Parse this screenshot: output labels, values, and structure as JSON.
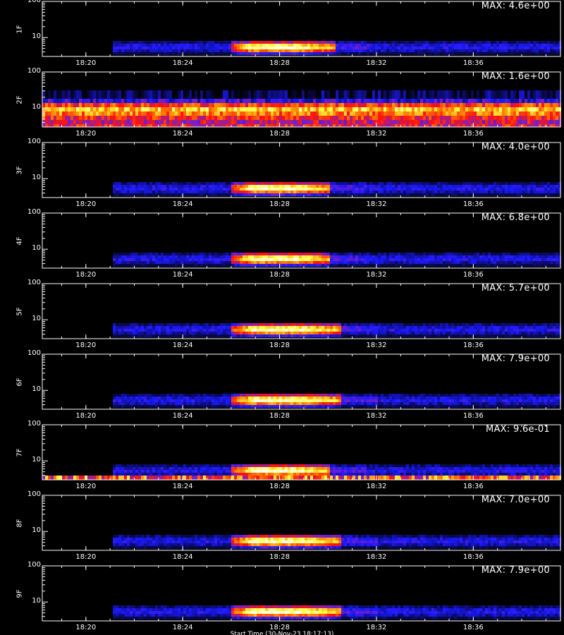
{
  "chart_data": {
    "type": "heatmap",
    "x_tick_labels": [
      "18:20",
      "18:24",
      "18:28",
      "18:32",
      "18:36"
    ],
    "y_tick_labels": [
      "100",
      "10"
    ],
    "x_time_ticks_minutes": [
      20,
      24,
      28,
      32,
      36
    ],
    "x_range_minutes": [
      18.2,
      39.6
    ],
    "y_scale": "log",
    "y_range": [
      3,
      100
    ],
    "colormap": [
      "#000000",
      "#0a0a60",
      "#1a1aff",
      "#8020c0",
      "#ff1010",
      "#ff8000",
      "#ffff40",
      "#ffffff"
    ],
    "bottom_label": "Start Time (30-Nov-23 18:17:13)",
    "panels": [
      {
        "name": "1F",
        "max_label": "MAX: 4.6e+00",
        "burst_start": 26.0,
        "burst_peak": 27.2,
        "burst_end": 30.2,
        "noise_start": 21.1
      },
      {
        "name": "2F",
        "max_label": "MAX: 1.6e+00",
        "burst_start": 18.2,
        "burst_peak": 28.0,
        "burst_end": 39.6,
        "noise_start": 18.2,
        "saturated": true
      },
      {
        "name": "3F",
        "max_label": "MAX: 4.0e+00",
        "burst_start": 26.0,
        "burst_peak": 27.2,
        "burst_end": 30.0,
        "noise_start": 21.1
      },
      {
        "name": "4F",
        "max_label": "MAX: 6.8e+00",
        "burst_start": 26.0,
        "burst_peak": 27.2,
        "burst_end": 30.0,
        "noise_start": 21.1
      },
      {
        "name": "5F",
        "max_label": "MAX: 5.7e+00",
        "burst_start": 26.0,
        "burst_peak": 27.3,
        "burst_end": 30.5,
        "noise_start": 21.1
      },
      {
        "name": "6F",
        "max_label": "MAX: 7.9e+00",
        "burst_start": 26.0,
        "burst_peak": 27.3,
        "burst_end": 30.5,
        "noise_start": 21.1
      },
      {
        "name": "7F",
        "max_label": "MAX: 9.6e-01",
        "burst_start": 26.0,
        "burst_peak": 27.3,
        "burst_end": 30.0,
        "noise_start": 21.1,
        "bottom_band": true
      },
      {
        "name": "8F",
        "max_label": "MAX: 7.0e+00",
        "burst_start": 26.0,
        "burst_peak": 27.3,
        "burst_end": 30.5,
        "noise_start": 21.1
      },
      {
        "name": "9F",
        "max_label": "MAX: 7.9e+00",
        "burst_start": 26.0,
        "burst_peak": 27.3,
        "burst_end": 30.5,
        "noise_start": 21.1
      }
    ]
  }
}
